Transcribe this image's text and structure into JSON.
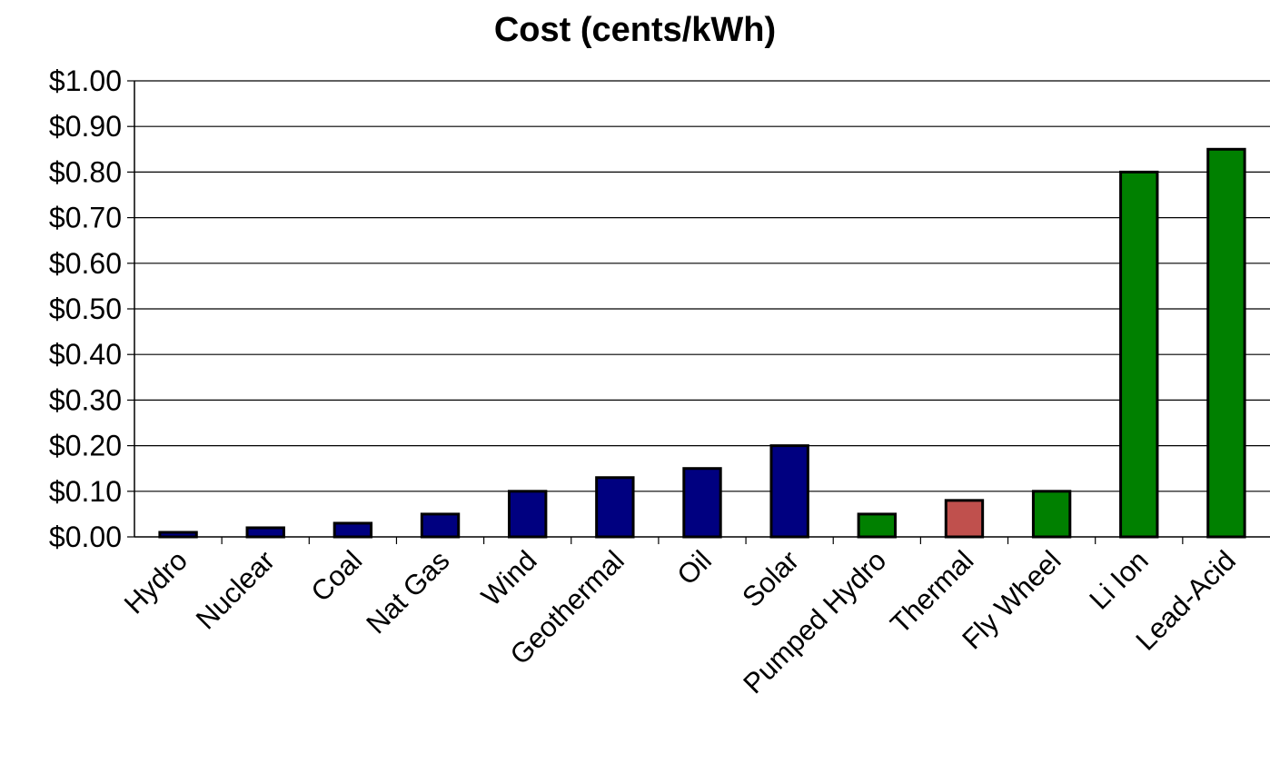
{
  "chart_data": {
    "type": "bar",
    "title": "Cost (cents/kWh)",
    "xlabel": "",
    "ylabel": "",
    "ylim": [
      0,
      1.0
    ],
    "yticks": [
      0.0,
      0.1,
      0.2,
      0.3,
      0.4,
      0.5,
      0.6,
      0.7,
      0.8,
      0.9,
      1.0
    ],
    "ytick_labels": [
      "$0.00",
      "$0.10",
      "$0.20",
      "$0.30",
      "$0.40",
      "$0.50",
      "$0.60",
      "$0.70",
      "$0.80",
      "$0.90",
      "$1.00"
    ],
    "grid": true,
    "legend": "none",
    "categories": [
      "Hydro",
      "Nuclear",
      "Coal",
      "Nat Gas",
      "Wind",
      "Geothermal",
      "Oil",
      "Solar",
      "Pumped Hydro",
      "Thermal",
      "Fly Wheel",
      "Li Ion",
      "Lead-Acid"
    ],
    "values": [
      0.01,
      0.02,
      0.03,
      0.05,
      0.1,
      0.13,
      0.15,
      0.2,
      0.05,
      0.08,
      0.1,
      0.8,
      0.85
    ],
    "bar_colors": [
      "#000080",
      "#000080",
      "#000080",
      "#000080",
      "#000080",
      "#000080",
      "#000080",
      "#000080",
      "#008000",
      "#c0504d",
      "#008000",
      "#008000",
      "#008000"
    ]
  }
}
